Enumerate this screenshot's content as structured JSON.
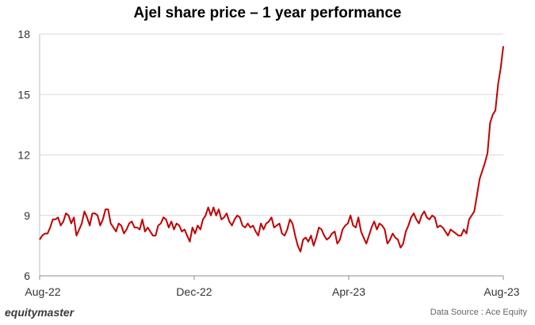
{
  "chart_data": {
    "type": "line",
    "title": "Ajel share price – 1 year performance",
    "xlabel": "",
    "ylabel": "",
    "x_ticks": [
      "Aug-22",
      "Dec-22",
      "Apr-23",
      "Aug-23"
    ],
    "y_ticks": [
      6,
      9,
      12,
      15,
      18
    ],
    "ylim": [
      6,
      18
    ],
    "grid": "horizontal",
    "series": [
      {
        "color": "#c00000",
        "values": [
          7.8,
          8.0,
          8.1,
          8.1,
          8.4,
          8.8,
          8.8,
          8.9,
          8.5,
          8.7,
          9.1,
          9.0,
          8.6,
          8.9,
          8.0,
          8.3,
          8.6,
          9.2,
          8.9,
          8.5,
          9.1,
          9.1,
          9.0,
          8.5,
          8.8,
          9.3,
          9.3,
          8.6,
          8.4,
          8.2,
          8.6,
          8.5,
          8.1,
          8.3,
          8.6,
          8.7,
          8.4,
          8.4,
          8.3,
          8.8,
          8.2,
          8.4,
          8.2,
          8.0,
          8.0,
          8.5,
          8.6,
          8.9,
          8.8,
          8.4,
          8.7,
          8.3,
          8.6,
          8.5,
          8.2,
          8.3,
          8.0,
          7.7,
          8.4,
          8.1,
          8.5,
          8.3,
          8.8,
          9.0,
          9.4,
          9.0,
          9.4,
          9.0,
          9.3,
          8.8,
          8.9,
          9.1,
          8.7,
          8.5,
          8.8,
          9.0,
          8.9,
          8.5,
          8.4,
          8.6,
          8.4,
          8.5,
          8.2,
          8.0,
          8.6,
          8.3,
          8.6,
          8.7,
          8.9,
          8.4,
          8.5,
          8.6,
          8.1,
          8.0,
          8.3,
          8.8,
          8.6,
          8.0,
          7.5,
          7.2,
          7.8,
          7.9,
          7.7,
          8.0,
          7.5,
          7.9,
          8.4,
          8.3,
          8.0,
          7.8,
          7.9,
          8.1,
          8.2,
          7.6,
          7.8,
          8.3,
          8.5,
          8.6,
          9.0,
          8.5,
          8.4,
          8.9,
          8.2,
          7.9,
          7.6,
          8.0,
          8.4,
          8.7,
          8.3,
          8.6,
          8.5,
          8.3,
          7.6,
          7.8,
          8.1,
          7.9,
          7.8,
          7.4,
          7.6,
          8.2,
          8.5,
          8.9,
          9.1,
          8.8,
          8.6,
          9.0,
          9.2,
          8.9,
          8.8,
          9.0,
          8.9,
          8.4,
          8.5,
          8.4,
          8.2,
          8.0,
          8.3,
          8.2,
          8.1,
          8.0,
          8.0,
          8.3,
          8.1,
          8.8,
          9.0,
          9.2,
          10.0,
          10.8,
          11.2,
          11.6,
          12.1,
          13.6,
          14.0,
          14.2,
          15.5,
          16.3,
          17.4
        ]
      }
    ]
  },
  "footer": {
    "brand": "equitymaster",
    "source": "Data Source : Ace Equity"
  }
}
